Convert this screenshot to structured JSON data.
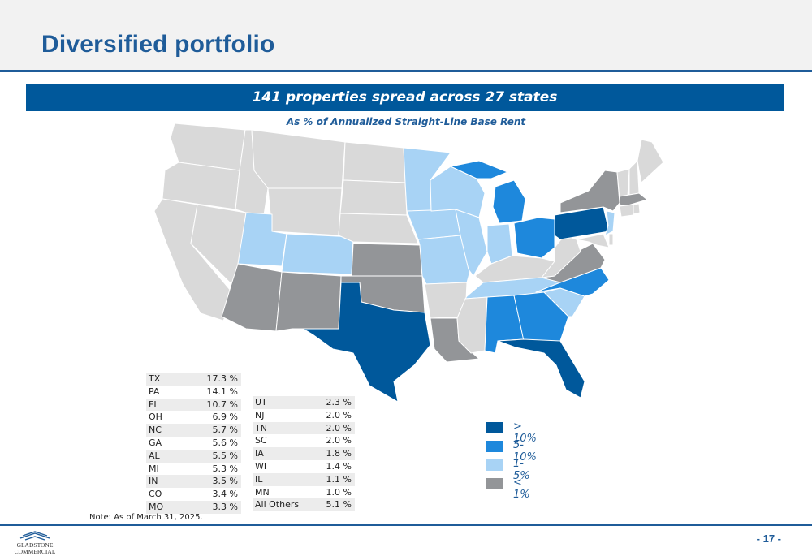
{
  "header": {
    "title": "Diversified portfolio"
  },
  "banner": {
    "text": "141 properties spread across 27 states"
  },
  "subtitle": "As % of Annualized Straight-Line Base Rent",
  "colors": {
    "gt10": "#00589b",
    "p5_10": "#1e88dc",
    "p1_5": "#a8d3f5",
    "lt1": "#939598",
    "none": "#d9d9d9",
    "title": "#1f5c99"
  },
  "table_left": [
    {
      "state": "TX",
      "pct": "17.3 %"
    },
    {
      "state": "PA",
      "pct": "14.1 %"
    },
    {
      "state": "FL",
      "pct": "10.7 %"
    },
    {
      "state": "OH",
      "pct": "6.9 %"
    },
    {
      "state": "NC",
      "pct": "5.7 %"
    },
    {
      "state": "GA",
      "pct": "5.6 %"
    },
    {
      "state": "AL",
      "pct": "5.5 %"
    },
    {
      "state": "MI",
      "pct": "5.3 %"
    },
    {
      "state": "IN",
      "pct": "3.5 %"
    },
    {
      "state": "CO",
      "pct": "3.4 %"
    },
    {
      "state": "MO",
      "pct": "3.3 %"
    }
  ],
  "table_right": [
    {
      "state": "UT",
      "pct": "2.3 %"
    },
    {
      "state": "NJ",
      "pct": "2.0 %"
    },
    {
      "state": "TN",
      "pct": "2.0 %"
    },
    {
      "state": "SC",
      "pct": "2.0 %"
    },
    {
      "state": "IA",
      "pct": "1.8 %"
    },
    {
      "state": "WI",
      "pct": "1.4 %"
    },
    {
      "state": "IL",
      "pct": "1.1 %"
    },
    {
      "state": "MN",
      "pct": "1.0 %"
    },
    {
      "state": "All Others",
      "pct": "5.1 %"
    }
  ],
  "legend": [
    {
      "label": "> 10%",
      "color": "#00589b"
    },
    {
      "label": "5-10%",
      "color": "#1e88dc"
    },
    {
      "label": "1-5%",
      "color": "#a8d3f5"
    },
    {
      "label": "< 1%",
      "color": "#939598"
    }
  ],
  "note": "Note: As of March 31, 2025.",
  "logo": {
    "line1": "GLADSTONE",
    "line2": "COMMERCIAL"
  },
  "page_number": "- 17 -"
}
